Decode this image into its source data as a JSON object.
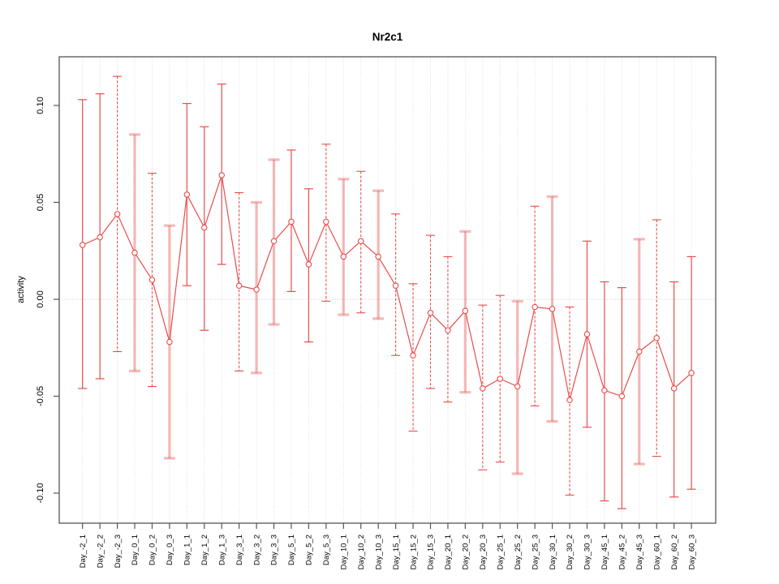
{
  "page": {
    "background": "#ffffff"
  },
  "chart_data": {
    "type": "scatter",
    "title": "Nr2c1",
    "xlabel": "",
    "ylabel": "activity",
    "legend": "none",
    "grid": "light dotted vertical line at every category; light dotted horizontal line at y=0",
    "error_bars": true,
    "point_marker": "open-circle",
    "categories": [
      "Day_-2_1",
      "Day_-2_2",
      "Day_-2_3",
      "Day_0_1",
      "Day_0_2",
      "Day_0_3",
      "Day_1_1",
      "Day_1_2",
      "Day_1_3",
      "Day_3_1",
      "Day_3_2",
      "Day_3_3",
      "Day_5_1",
      "Day_5_2",
      "Day_5_3",
      "Day_10_1",
      "Day_10_2",
      "Day_10_3",
      "Day_15_1",
      "Day_15_2",
      "Day_15_3",
      "Day_20_1",
      "Day_20_2",
      "Day_20_3",
      "Day_25_1",
      "Day_25_2",
      "Day_25_3",
      "Day_30_1",
      "Day_30_2",
      "Day_30_3",
      "Day_45_1",
      "Day_45_2",
      "Day_45_3",
      "Day_60_1",
      "Day_60_2",
      "Day_60_3"
    ],
    "series": [
      {
        "name": "activity",
        "values": [
          0.028,
          0.032,
          0.044,
          0.024,
          0.01,
          -0.022,
          0.054,
          0.037,
          0.064,
          0.007,
          0.005,
          0.03,
          0.04,
          0.018,
          0.04,
          0.022,
          0.03,
          0.022,
          0.007,
          -0.029,
          -0.007,
          -0.016,
          -0.006,
          -0.046,
          -0.041,
          -0.045,
          -0.004,
          -0.005,
          -0.052,
          -0.018,
          -0.047,
          -0.05,
          -0.027,
          -0.02,
          -0.046,
          -0.038
        ],
        "lower": [
          -0.046,
          -0.041,
          -0.027,
          -0.037,
          -0.045,
          -0.082,
          0.007,
          -0.016,
          0.018,
          -0.037,
          -0.038,
          -0.013,
          0.004,
          -0.022,
          -0.001,
          -0.008,
          -0.007,
          -0.01,
          -0.029,
          -0.068,
          -0.046,
          -0.053,
          -0.048,
          -0.088,
          -0.084,
          -0.09,
          -0.055,
          -0.063,
          -0.101,
          -0.066,
          -0.104,
          -0.108,
          -0.085,
          -0.081,
          -0.102,
          -0.098
        ],
        "upper": [
          0.103,
          0.106,
          0.115,
          0.085,
          0.065,
          0.038,
          0.101,
          0.089,
          0.111,
          0.055,
          0.05,
          0.072,
          0.077,
          0.057,
          0.08,
          0.062,
          0.066,
          0.056,
          0.044,
          0.008,
          0.033,
          0.022,
          0.035,
          -0.003,
          0.002,
          -0.001,
          0.048,
          0.053,
          -0.004,
          0.03,
          0.009,
          0.006,
          0.031,
          0.041,
          0.009,
          0.022
        ]
      }
    ],
    "bar_styles": [
      "thin",
      "thin",
      "dashed",
      "thick",
      "dashed",
      "thick",
      "thin",
      "thin",
      "thin",
      "dashed",
      "thick",
      "thick",
      "thin",
      "thin",
      "dashed",
      "thick",
      "dashed",
      "thick",
      "dashed",
      "dashed",
      "dashed",
      "dashed",
      "thick",
      "dashed",
      "dashed",
      "thick",
      "dashed",
      "thick",
      "dashed",
      "thin",
      "thin",
      "thin",
      "thick",
      "dashed",
      "thin",
      "thin"
    ],
    "y_ticks": [
      -0.1,
      -0.05,
      0.0,
      0.05,
      0.1
    ],
    "y_tick_labels": [
      "-0.10",
      "-0.05",
      "0.00",
      "0.05",
      "0.10"
    ],
    "ylim": [
      -0.1155,
      0.1251
    ],
    "colors": {
      "series": "#e84d4d",
      "thick_bar": "rgba(238,100,100,0.45)",
      "grid": "#d9d9d9",
      "zero_line": "#c8c8c8",
      "axis": "#555555",
      "tick_text": "#000000"
    }
  }
}
